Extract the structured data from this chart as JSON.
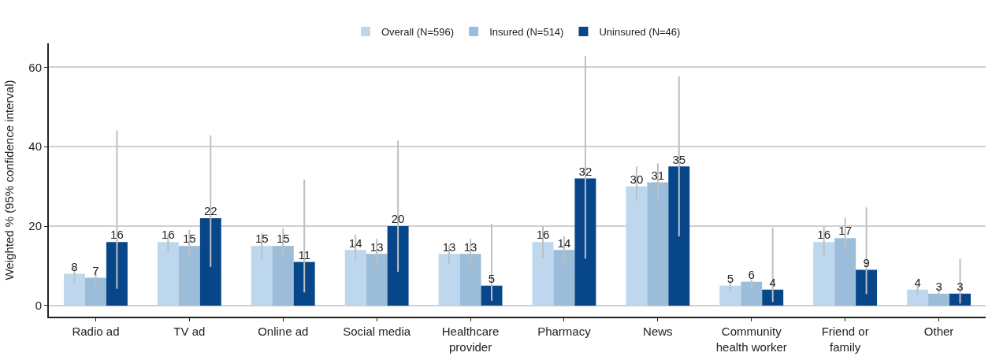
{
  "chart_data": {
    "type": "bar",
    "ylabel": "Weighted % (95% confidence interval)",
    "categories": [
      "Radio ad",
      "TV ad",
      "Online ad",
      "Social media",
      "Healthcare\nprovider",
      "Pharmacy",
      "News",
      "Community\nhealth worker",
      "Friend or\nfamily",
      "Other"
    ],
    "series": [
      {
        "name": "Overall (N=596)",
        "color": "#bdd7ee",
        "values": [
          8,
          16,
          15,
          14,
          13,
          16,
          30,
          5,
          16,
          4
        ],
        "errors": [
          [
            5.8,
            9.5
          ],
          [
            13.5,
            17.8
          ],
          [
            11.5,
            18.3
          ],
          [
            11.3,
            17.8
          ],
          [
            10.3,
            15.1
          ],
          [
            11.9,
            19.9
          ],
          [
            26.3,
            35.0
          ],
          [
            3.5,
            6.2
          ],
          [
            12.6,
            20.1
          ],
          [
            2.5,
            5.3
          ]
        ]
      },
      {
        "name": "Insured (N=514)",
        "color": "#9bbdd9",
        "values": [
          7,
          15,
          15,
          13,
          13,
          14,
          31,
          6,
          17,
          3
        ],
        "errors": [
          [
            5.2,
            8.8
          ],
          [
            11.9,
            19.0
          ],
          [
            12.1,
            19.4
          ],
          [
            10.1,
            16.8
          ],
          [
            10.1,
            16.8
          ],
          [
            11.0,
            17.4
          ],
          [
            26.1,
            35.8
          ],
          [
            3.8,
            6.6
          ],
          [
            13.8,
            22.1
          ],
          [
            2.0,
            4.5
          ]
        ]
      },
      {
        "name": "Uninsured (N=46)",
        "color": "#08468a",
        "values": [
          16,
          22,
          11,
          20,
          5,
          32,
          35,
          4,
          9,
          3
        ],
        "errors": [
          [
            4.2,
            44.1
          ],
          [
            9.7,
            42.8
          ],
          [
            3.3,
            31.7
          ],
          [
            8.5,
            41.5
          ],
          [
            1.2,
            20.6
          ],
          [
            11.8,
            62.9
          ],
          [
            17.4,
            57.7
          ],
          [
            0.9,
            19.6
          ],
          [
            2.9,
            24.7
          ],
          [
            0.5,
            11.8
          ]
        ]
      }
    ],
    "ylim": [
      -2.8,
      66
    ],
    "yticks": [
      0,
      20,
      40,
      60
    ],
    "grid": "y",
    "legend": "top",
    "data_labels": true
  }
}
